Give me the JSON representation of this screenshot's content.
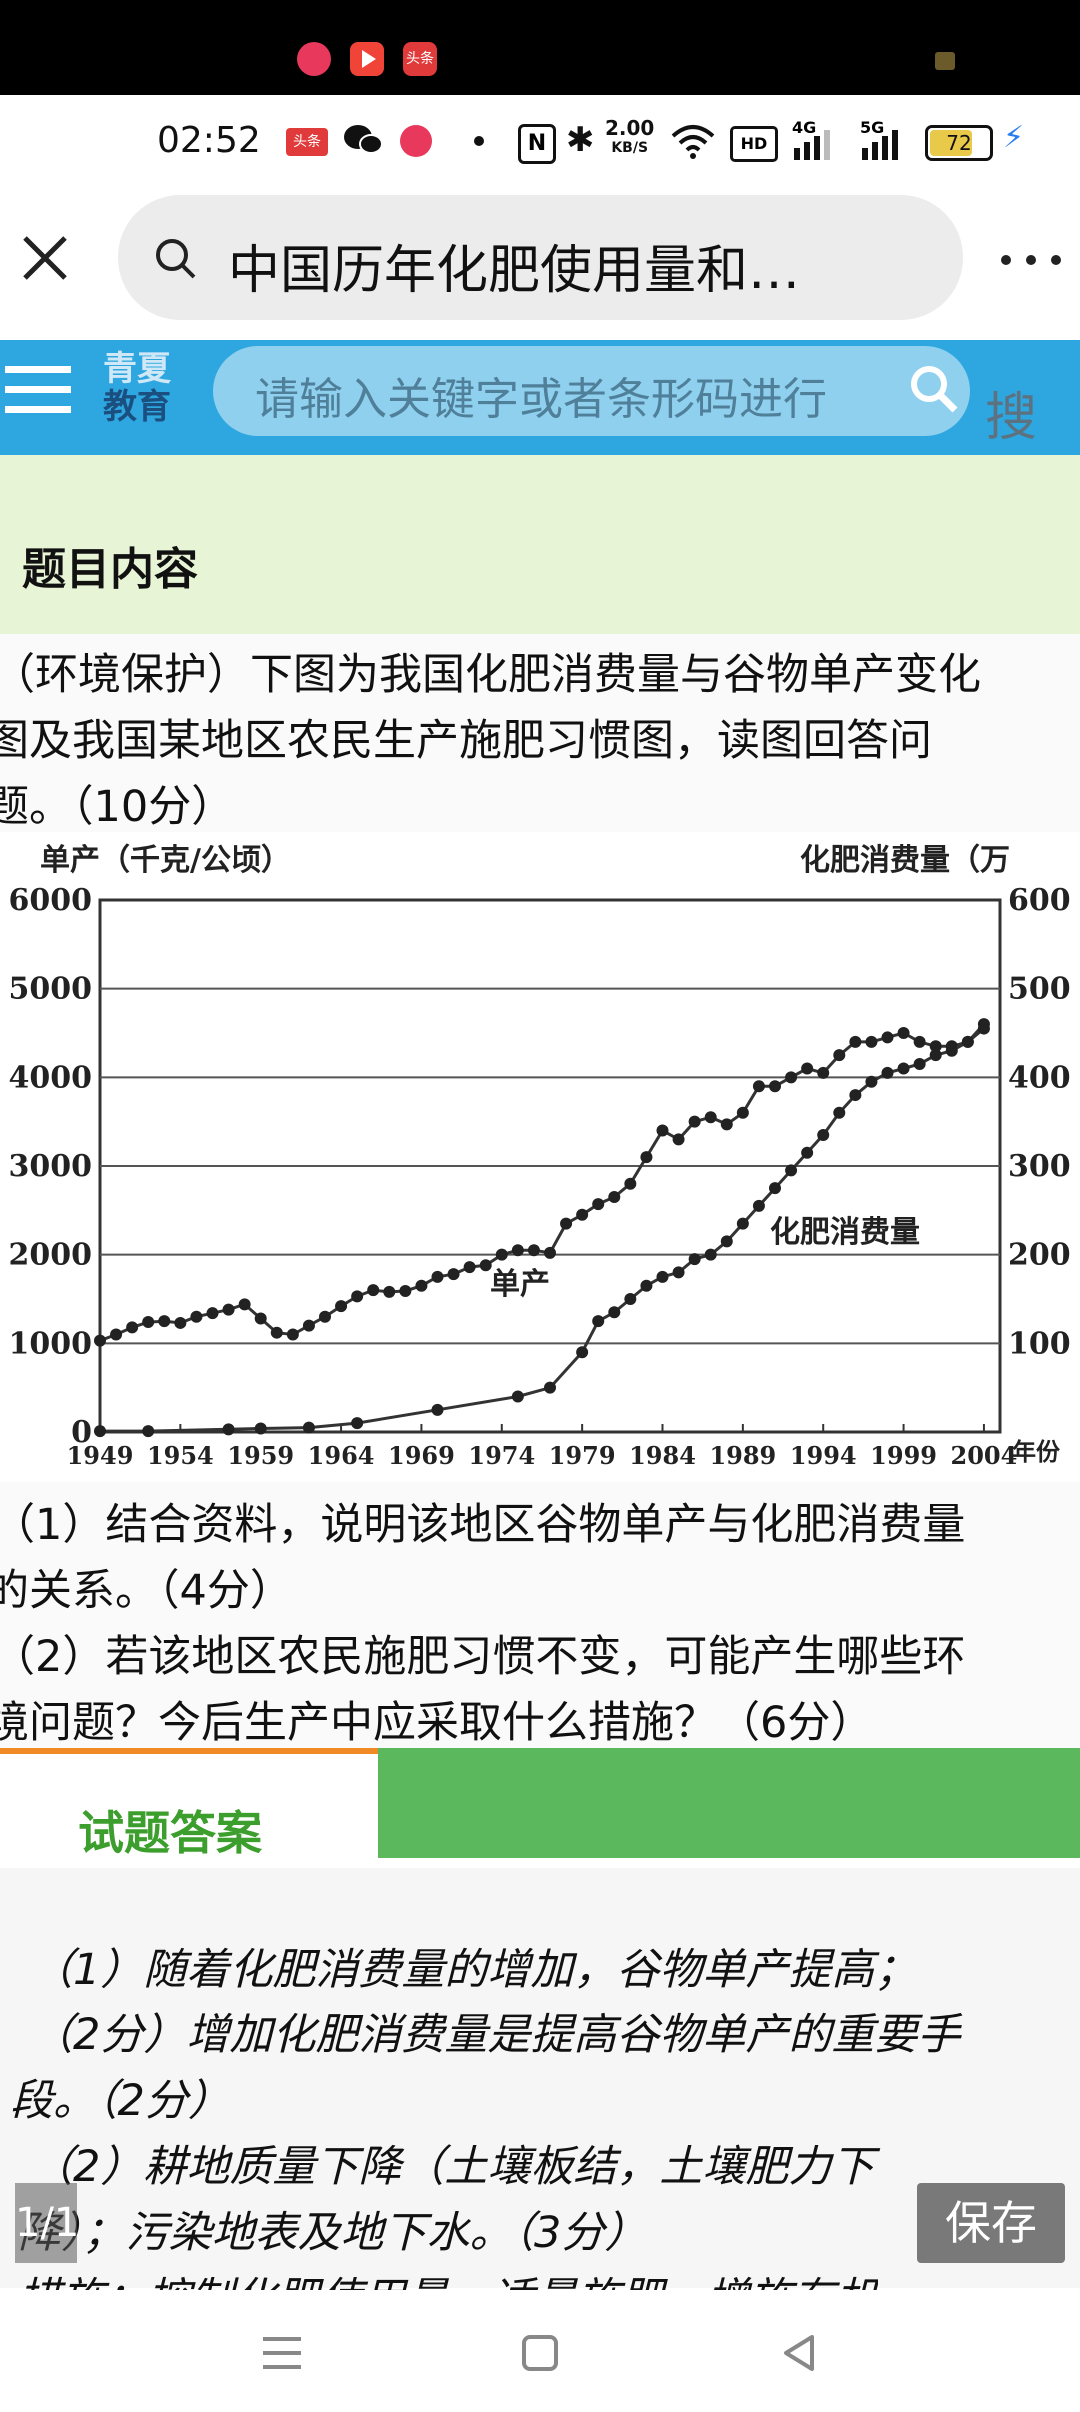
{
  "status_bar": {
    "time": "02:52",
    "net_speed_value": "2.00",
    "net_speed_unit": "KB/S",
    "hd_label": "HD",
    "sig1": "4G",
    "sig2": "5G",
    "battery": "72",
    "toutiao_label": "头条"
  },
  "browser": {
    "title": "中国历年化肥使用量和…",
    "close_icon": "close-icon",
    "menu_icon": "more-icon"
  },
  "site": {
    "logo_line1": "青夏",
    "logo_line2": "教育",
    "search_placeholder": "请输入关键字或者条形码进行",
    "search_button": "搜索"
  },
  "section": {
    "title": "题目内容",
    "question_lines": [
      "（环境保护）下图为我国化肥消费量与谷物单产变化",
      "图及我国某地区农民生产施肥习惯图，读图回答问",
      "题。（10分）"
    ],
    "sub_questions": [
      "（1）结合资料，说明该地区谷物单产与化肥消费量",
      "的关系。（4分）",
      "（2）若该地区农民施肥习惯不变，可能产生哪些环",
      "境问题？今后生产中应采取什么措施？（6分）"
    ]
  },
  "chart_data": {
    "type": "line",
    "title": "",
    "left_axis_label": "单产（千克/公顷）",
    "right_axis_label": "化肥消费量（万",
    "x_unit": "年份",
    "x_ticks": [
      "1949",
      "1954",
      "1959",
      "1964",
      "1969",
      "1974",
      "1979",
      "1984",
      "1989",
      "1994",
      "1999",
      "2004"
    ],
    "left_ticks": [
      "0",
      "1000",
      "2000",
      "3000",
      "4000",
      "5000",
      "6000"
    ],
    "right_ticks": [
      "100",
      "200",
      "300",
      "400",
      "500",
      "600"
    ],
    "ylim_left": [
      0,
      6000
    ],
    "ylim_right": [
      0,
      600
    ],
    "xlim": [
      1949,
      2005
    ],
    "series": [
      {
        "name": "单产",
        "axis": "left",
        "x": [
          1949,
          1950,
          1951,
          1952,
          1953,
          1954,
          1955,
          1956,
          1957,
          1958,
          1959,
          1960,
          1961,
          1962,
          1963,
          1964,
          1965,
          1966,
          1967,
          1968,
          1969,
          1970,
          1971,
          1972,
          1973,
          1974,
          1975,
          1976,
          1977,
          1978,
          1979,
          1980,
          1981,
          1982,
          1983,
          1984,
          1985,
          1986,
          1987,
          1988,
          1989,
          1990,
          1991,
          1992,
          1993,
          1994,
          1995,
          1996,
          1997,
          1998,
          1999,
          2000,
          2001,
          2002,
          2003,
          2004
        ],
        "y": [
          1030,
          1100,
          1180,
          1240,
          1250,
          1230,
          1300,
          1340,
          1380,
          1440,
          1280,
          1120,
          1100,
          1200,
          1300,
          1420,
          1530,
          1600,
          1580,
          1590,
          1650,
          1750,
          1780,
          1860,
          1880,
          2000,
          2050,
          2050,
          2020,
          2350,
          2450,
          2570,
          2650,
          2800,
          3100,
          3400,
          3300,
          3500,
          3550,
          3470,
          3600,
          3900,
          3900,
          4000,
          4100,
          4050,
          4250,
          4400,
          4400,
          4450,
          4500,
          4400,
          4350,
          4350,
          4400,
          4600
        ]
      },
      {
        "name": "化肥消费量",
        "axis": "right",
        "x": [
          1949,
          1952,
          1957,
          1959,
          1962,
          1965,
          1970,
          1975,
          1977,
          1979,
          1980,
          1981,
          1982,
          1983,
          1984,
          1985,
          1986,
          1987,
          1988,
          1989,
          1990,
          1991,
          1992,
          1993,
          1994,
          1995,
          1996,
          1997,
          1998,
          1999,
          2000,
          2001,
          2002,
          2003,
          2004
        ],
        "y": [
          1,
          1,
          3,
          4,
          5,
          10,
          25,
          40,
          50,
          90,
          125,
          135,
          150,
          165,
          175,
          180,
          195,
          200,
          215,
          235,
          255,
          275,
          295,
          315,
          335,
          360,
          380,
          395,
          405,
          410,
          415,
          425,
          430,
          440,
          455
        ]
      }
    ],
    "curve_labels": {
      "yield": "单产",
      "fertilizer": "化肥消费量"
    }
  },
  "answer": {
    "tab_title": "试题答案",
    "lines": [
      "（1）随着化肥消费量的增加，谷物单产提高；",
      "（2分）增加化肥消费量是提高谷物单产的重要手",
      "段。（2分）",
      "（2）耕地质量下降（土壤板结，土壤肥力下",
      "降）；污染地表及地下水。（3分）",
      "措施：控制化肥使用量，适量施肥，增施有机"
    ]
  },
  "overlay": {
    "page_indicator": "1/1",
    "save_button": "保存"
  }
}
